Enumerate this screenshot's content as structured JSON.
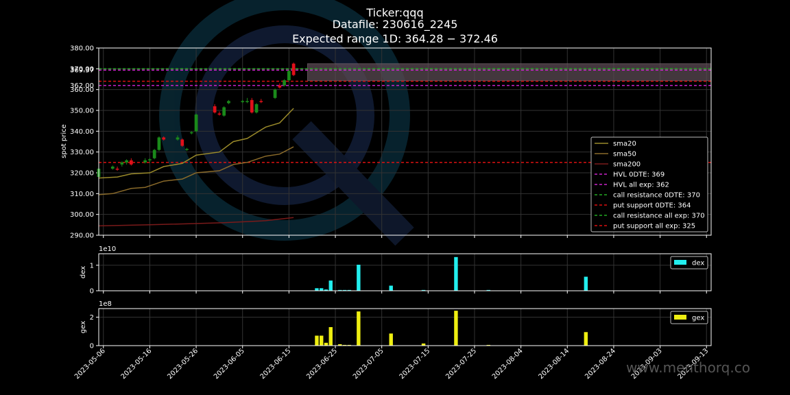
{
  "title": {
    "line1": "Ticker:qqq",
    "line2": "Datafile: 230616_2245",
    "line3": "Expected range 1D: 364.28 − 372.46"
  },
  "watermark": "www.menthorq.co",
  "colors": {
    "background": "#000000",
    "candle_up": "#1a8a1a",
    "candle_down": "#e0101a",
    "sma20": "#9a8a2a",
    "sma50": "#8a6a2a",
    "sma200": "#7a1a1a",
    "hvl": "#cc22cc",
    "call_resistance": "#22aa22",
    "put_support": "#dd1111",
    "dex": "#22eeee",
    "gex": "#eeee11",
    "expected_range_band": "#5a4a52",
    "logo": "#0e3a4a"
  },
  "chart_data": [
    {
      "type": "candlestick",
      "ylabel": "spot price",
      "ylim": [
        290,
        380
      ],
      "grid": true,
      "y_ticks": [
        "290.00",
        "300.00",
        "310.00",
        "320.00",
        "330.00",
        "340.00",
        "350.00",
        "360.00",
        "370.00",
        "380.00"
      ],
      "level_labels": [
        "370.00",
        "369.37",
        "362.00"
      ],
      "x_ticks": [
        "2023-05-06",
        "2023-05-16",
        "2023-05-26",
        "2023-06-05",
        "2023-06-15",
        "2023-06-25",
        "2023-07-05",
        "2023-07-15",
        "2023-07-25",
        "2023-08-04",
        "2023-08-14",
        "2023-08-24",
        "2023-09-03",
        "2023-09-13"
      ],
      "xlim": [
        "2023-05-05",
        "2023-09-14"
      ],
      "candles": [
        {
          "date": "2023-05-05",
          "open": 318,
          "high": 324,
          "low": 317,
          "close": 322
        },
        {
          "date": "2023-05-08",
          "open": 322,
          "high": 323.5,
          "low": 321.5,
          "close": 323
        },
        {
          "date": "2023-05-09",
          "open": 322,
          "high": 323,
          "low": 321,
          "close": 321.5
        },
        {
          "date": "2023-05-10",
          "open": 324,
          "high": 325.5,
          "low": 323,
          "close": 325
        },
        {
          "date": "2023-05-11",
          "open": 325,
          "high": 326.5,
          "low": 324,
          "close": 326
        },
        {
          "date": "2023-05-12",
          "open": 326,
          "high": 327,
          "low": 323.5,
          "close": 324
        },
        {
          "date": "2023-05-15",
          "open": 325,
          "high": 327,
          "low": 324.5,
          "close": 326
        },
        {
          "date": "2023-05-16",
          "open": 326,
          "high": 327,
          "low": 325,
          "close": 326.5
        },
        {
          "date": "2023-05-17",
          "open": 327,
          "high": 331.5,
          "low": 326.5,
          "close": 331
        },
        {
          "date": "2023-05-18",
          "open": 331,
          "high": 337.5,
          "low": 330.5,
          "close": 337
        },
        {
          "date": "2023-05-19",
          "open": 337,
          "high": 337.5,
          "low": 335.5,
          "close": 336
        },
        {
          "date": "2023-05-22",
          "open": 336,
          "high": 338,
          "low": 335.5,
          "close": 337
        },
        {
          "date": "2023-05-23",
          "open": 336,
          "high": 336.5,
          "low": 332.5,
          "close": 333
        },
        {
          "date": "2023-05-24",
          "open": 331,
          "high": 332,
          "low": 330.5,
          "close": 331.5
        },
        {
          "date": "2023-05-25",
          "open": 339,
          "high": 340,
          "low": 338.5,
          "close": 339.5
        },
        {
          "date": "2023-05-26",
          "open": 340,
          "high": 348.5,
          "low": 339.5,
          "close": 348
        },
        {
          "date": "2023-05-30",
          "open": 352,
          "high": 353,
          "low": 348.5,
          "close": 349
        },
        {
          "date": "2023-05-31",
          "open": 348.5,
          "high": 349.5,
          "low": 347.5,
          "close": 348
        },
        {
          "date": "2023-06-01",
          "open": 347.5,
          "high": 352,
          "low": 347,
          "close": 351.5
        },
        {
          "date": "2023-06-02",
          "open": 353.5,
          "high": 355,
          "low": 353,
          "close": 354.5
        },
        {
          "date": "2023-06-05",
          "open": 354,
          "high": 355,
          "low": 353.5,
          "close": 354.5
        },
        {
          "date": "2023-06-06",
          "open": 354,
          "high": 356,
          "low": 353.5,
          "close": 354.5
        },
        {
          "date": "2023-06-07",
          "open": 355,
          "high": 356,
          "low": 348.5,
          "close": 349
        },
        {
          "date": "2023-06-08",
          "open": 349,
          "high": 353.5,
          "low": 348.5,
          "close": 353
        },
        {
          "date": "2023-06-09",
          "open": 354.5,
          "high": 355.5,
          "low": 353.5,
          "close": 354
        },
        {
          "date": "2023-06-12",
          "open": 356,
          "high": 360.5,
          "low": 355.5,
          "close": 360
        },
        {
          "date": "2023-06-13",
          "open": 362,
          "high": 363,
          "low": 360.5,
          "close": 361
        },
        {
          "date": "2023-06-14",
          "open": 362,
          "high": 365,
          "low": 361.5,
          "close": 364.5
        },
        {
          "date": "2023-06-15",
          "open": 364.5,
          "high": 369.5,
          "low": 364,
          "close": 369
        },
        {
          "date": "2023-06-16",
          "open": 372.5,
          "high": 373,
          "low": 366.5,
          "close": 367
        }
      ],
      "sma20": {
        "x": [
          "2023-05-05",
          "2023-05-09",
          "2023-05-12",
          "2023-05-16",
          "2023-05-19",
          "2023-05-23",
          "2023-05-26",
          "2023-05-31",
          "2023-06-03",
          "2023-06-06",
          "2023-06-10",
          "2023-06-13",
          "2023-06-16"
        ],
        "y": [
          317.5,
          318,
          319.5,
          320,
          323,
          324.5,
          328.5,
          330,
          335,
          336.5,
          342,
          344,
          351
        ]
      },
      "sma50": {
        "x": [
          "2023-05-05",
          "2023-05-08",
          "2023-05-12",
          "2023-05-15",
          "2023-05-19",
          "2023-05-23",
          "2023-05-26",
          "2023-05-31",
          "2023-06-03",
          "2023-06-06",
          "2023-06-10",
          "2023-06-13",
          "2023-06-16"
        ],
        "y": [
          309.5,
          310,
          312.5,
          313,
          316,
          317,
          320,
          321,
          324,
          325,
          328,
          329,
          332.5
        ]
      },
      "sma200": {
        "x": [
          "2023-05-05",
          "2023-05-16",
          "2023-06-01",
          "2023-06-10",
          "2023-06-16"
        ],
        "y": [
          294.5,
          295,
          296,
          297,
          298.5
        ]
      },
      "levels": [
        {
          "name": "HVL 0DTE: 369",
          "value": 369.37,
          "kind": "hvl"
        },
        {
          "name": "HVL all exp: 362",
          "value": 362,
          "kind": "hvl"
        },
        {
          "name": "call resistance 0DTE: 370",
          "value": 370,
          "kind": "call_resistance"
        },
        {
          "name": "put support 0DTE: 364",
          "value": 364,
          "kind": "put_support"
        },
        {
          "name": "call resistance all exp: 370",
          "value": 370,
          "kind": "call_resistance"
        },
        {
          "name": "put support all exp: 325",
          "value": 325,
          "kind": "put_support"
        }
      ],
      "expected_range": {
        "low": 364.28,
        "high": 372.46,
        "from": "2023-06-19",
        "to": "2023-09-14"
      },
      "legend": [
        "sma20",
        "sma50",
        "sma200",
        "HVL 0DTE: 369",
        "HVL all exp: 362",
        "call resistance 0DTE: 370",
        "put support 0DTE: 364",
        "call resistance all exp: 370",
        "put support all exp: 325"
      ],
      "legend_placement": "lower-right"
    },
    {
      "type": "bar",
      "ylabel": "dex",
      "offset_label": "1e10",
      "ylim": [
        0,
        1.45
      ],
      "y_ticks": [
        "0",
        "1"
      ],
      "legend": [
        "dex"
      ],
      "legend_placement": "upper-right",
      "x": [
        "2023-06-21",
        "2023-06-22",
        "2023-06-23",
        "2023-06-24",
        "2023-06-26",
        "2023-06-27",
        "2023-06-28",
        "2023-06-30",
        "2023-07-07",
        "2023-07-14",
        "2023-07-21",
        "2023-07-28",
        "2023-08-18"
      ],
      "values": [
        0.1,
        0.1,
        0.05,
        0.4,
        0.03,
        0.03,
        0.03,
        1.02,
        0.2,
        0.03,
        1.32,
        0.03,
        0.55
      ]
    },
    {
      "type": "bar",
      "ylabel": "gex",
      "offset_label": "1e8",
      "ylim": [
        0,
        2.6
      ],
      "y_ticks": [
        "0",
        "2"
      ],
      "legend": [
        "gex"
      ],
      "legend_placement": "upper-right",
      "x": [
        "2023-06-21",
        "2023-06-22",
        "2023-06-23",
        "2023-06-24",
        "2023-06-26",
        "2023-06-27",
        "2023-06-28",
        "2023-06-30",
        "2023-07-07",
        "2023-07-14",
        "2023-07-21",
        "2023-07-28",
        "2023-08-18"
      ],
      "values": [
        0.7,
        0.7,
        0.2,
        1.3,
        0.1,
        0.05,
        0.05,
        2.4,
        0.85,
        0.15,
        2.45,
        0.05,
        0.95
      ]
    }
  ]
}
